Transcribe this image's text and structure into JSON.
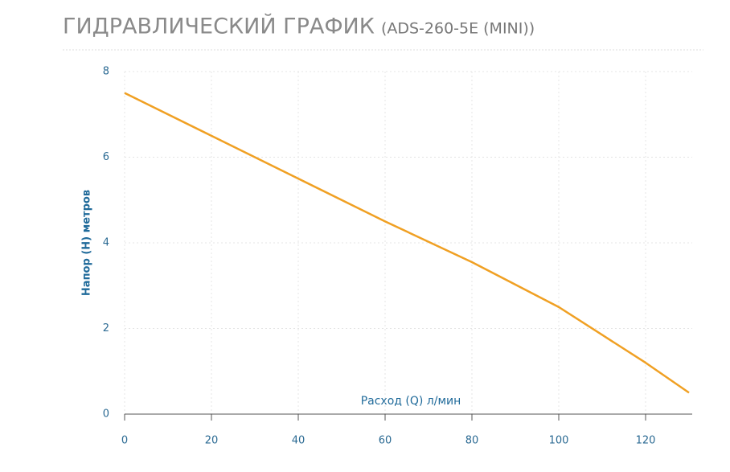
{
  "chart_data": {
    "type": "line",
    "title": "ГИДРАВЛИЧЕСКИЙ ГРАФИК",
    "subtitle": "(ADS-260-5E (MINI))",
    "x_label": "Расход (Q) л/мин",
    "y_label": "Напор (H) метров",
    "x": [
      0,
      20,
      40,
      60,
      80,
      100,
      110,
      120,
      130
    ],
    "series": [
      {
        "name": null,
        "color": "#f0a023",
        "values": [
          7.5,
          6.5,
          5.5,
          4.5,
          3.55,
          2.5,
          1.85,
          1.2,
          0.5
        ]
      }
    ],
    "xlim": [
      0,
      130
    ],
    "xticks": [
      0,
      20,
      40,
      60,
      80,
      100,
      120
    ],
    "ylim": [
      0,
      8
    ],
    "yticks": [
      0,
      2,
      4,
      6,
      8
    ],
    "grid": true
  }
}
